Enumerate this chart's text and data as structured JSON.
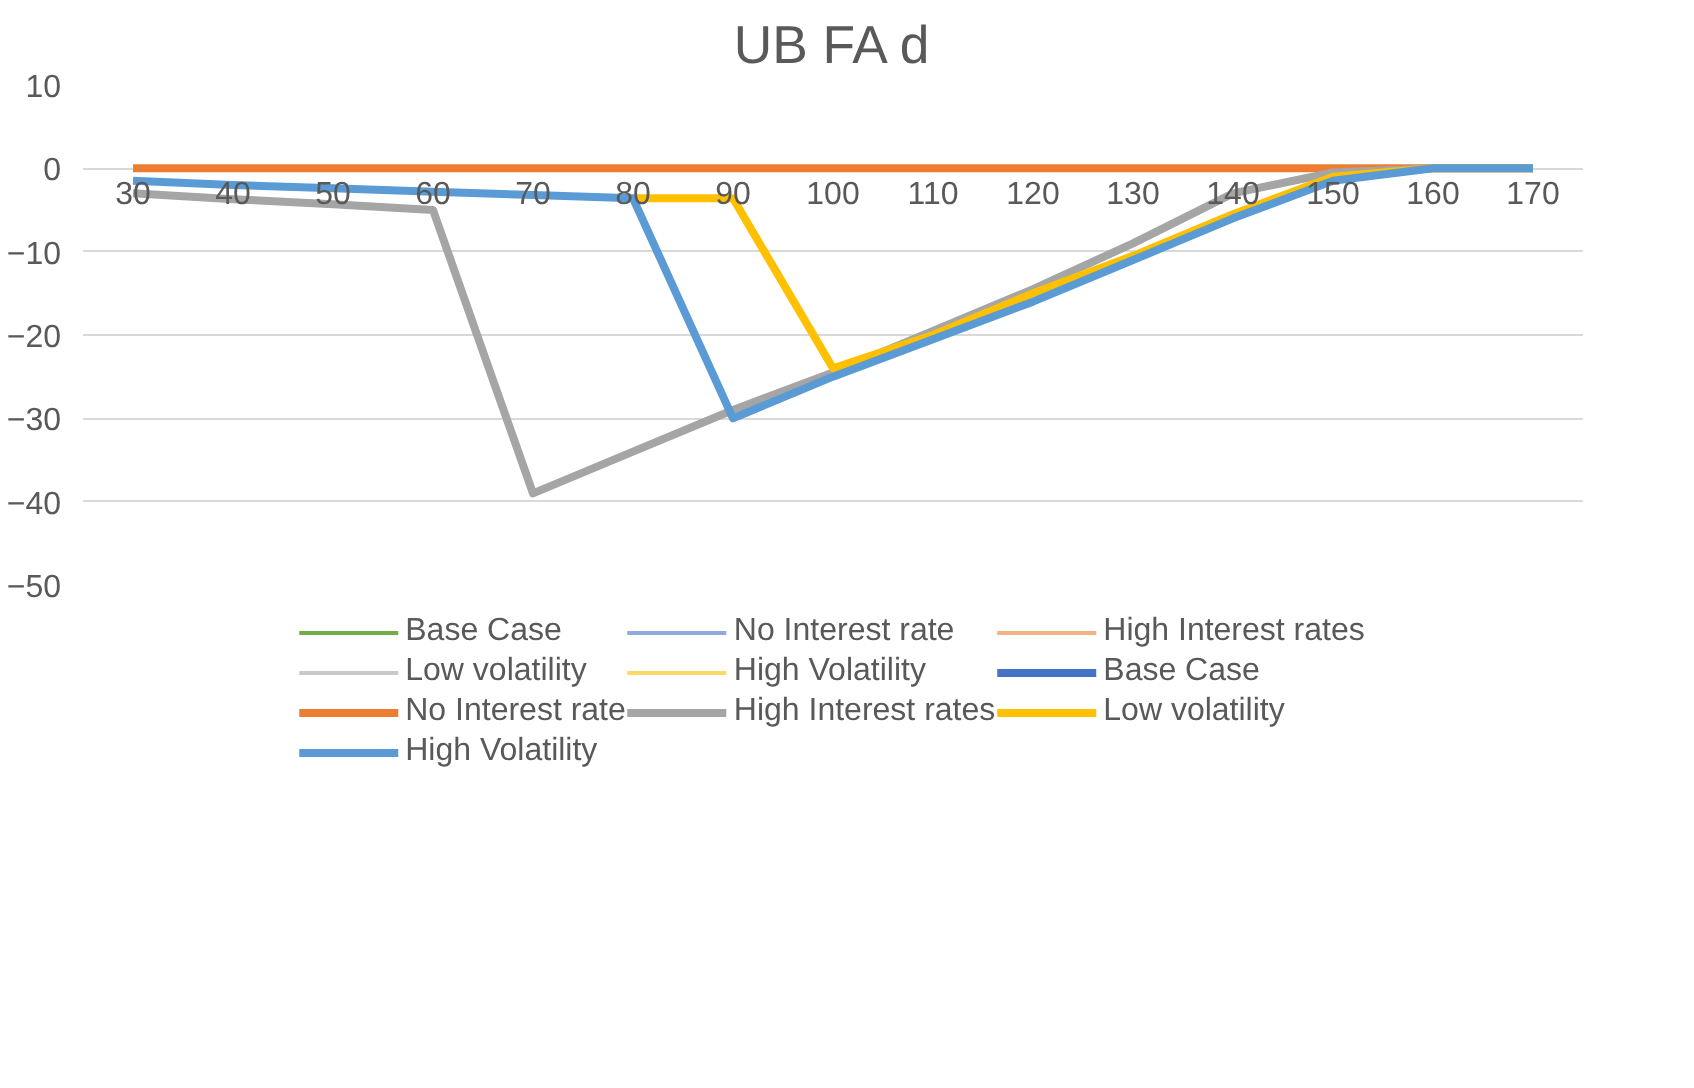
{
  "chart_data": {
    "type": "line",
    "title": "UB FA d",
    "x": [
      30,
      40,
      50,
      60,
      70,
      80,
      90,
      100,
      110,
      120,
      130,
      140,
      150,
      160,
      170
    ],
    "xlim": [
      25,
      175
    ],
    "xticks": [
      30,
      40,
      50,
      60,
      70,
      80,
      90,
      100,
      110,
      120,
      130,
      140,
      150,
      160,
      170
    ],
    "ylim": [
      -50,
      10
    ],
    "yticks": [
      -50,
      -40,
      -30,
      -20,
      -10,
      0,
      10
    ],
    "grid": "y",
    "legend": "bottom",
    "marker": "none",
    "line_style": "solid",
    "series": [
      {
        "name": "Base Case",
        "color": "#70ad47",
        "values": [
          null,
          null,
          null,
          null,
          null,
          null,
          null,
          null,
          null,
          null,
          null,
          null,
          null,
          null,
          null
        ]
      },
      {
        "name": "No Interest rate",
        "color": "#8faadc",
        "values": [
          null,
          null,
          null,
          null,
          null,
          null,
          null,
          null,
          null,
          null,
          null,
          null,
          null,
          null,
          null
        ]
      },
      {
        "name": "High Interest rates",
        "color": "#f4b183",
        "values": [
          null,
          null,
          null,
          null,
          null,
          null,
          null,
          null,
          null,
          null,
          null,
          null,
          null,
          null,
          null
        ]
      },
      {
        "name": "Low volatility",
        "color": "#c9c9c9",
        "values": [
          null,
          null,
          null,
          null,
          null,
          null,
          null,
          null,
          null,
          null,
          null,
          null,
          null,
          null,
          null
        ]
      },
      {
        "name": "High Volatility",
        "color": "#ffd966",
        "values": [
          null,
          null,
          null,
          null,
          null,
          null,
          null,
          null,
          null,
          null,
          null,
          null,
          null,
          null,
          null
        ]
      },
      {
        "name": "Base Case",
        "color": "#4472c4",
        "values": [
          null,
          null,
          null,
          null,
          null,
          null,
          null,
          null,
          null,
          null,
          null,
          null,
          null,
          null,
          null
        ]
      },
      {
        "name": "No Interest rate",
        "color": "#ed7d31",
        "values": [
          0,
          0,
          0,
          0,
          0,
          0,
          0,
          0,
          0,
          0,
          0,
          0,
          0,
          0,
          0
        ]
      },
      {
        "name": "High Interest rates",
        "color": "#a5a5a5",
        "values": [
          -3,
          -3.7,
          -4.3,
          -5,
          -39,
          -34,
          -29,
          -24.5,
          -19.5,
          -14.5,
          -9,
          -3,
          -0.5,
          0,
          0
        ]
      },
      {
        "name": "Low volatility",
        "color": "#ffc000",
        "values": [
          null,
          null,
          null,
          null,
          null,
          -3.6,
          -3.6,
          -24,
          -20,
          -15,
          -10.5,
          -5.5,
          -1,
          0,
          0
        ]
      },
      {
        "name": "High Volatility",
        "color": "#5b9bd5",
        "values": [
          -1.5,
          -2,
          -2.4,
          -2.8,
          -3.2,
          -3.6,
          -30,
          -25,
          -20.5,
          -16,
          -11,
          -6,
          -1.5,
          0,
          0
        ]
      }
    ]
  }
}
